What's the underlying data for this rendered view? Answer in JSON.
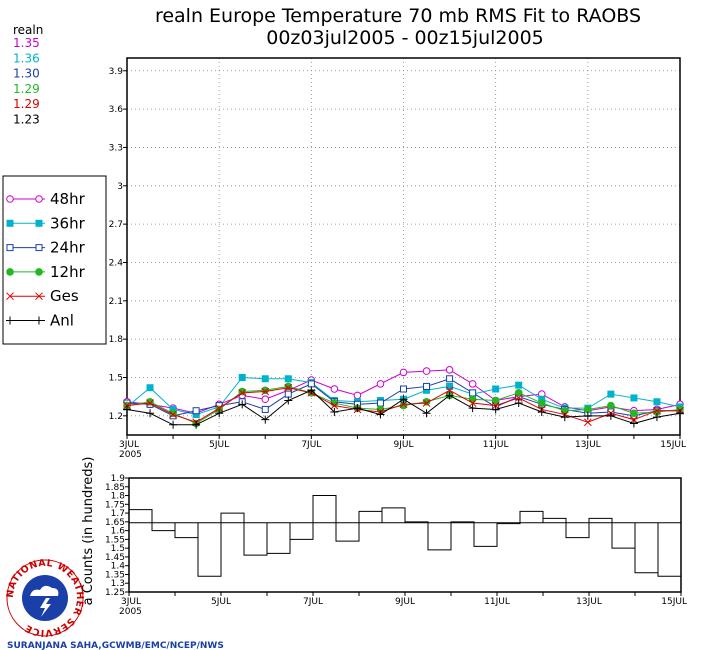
{
  "title": "realn Europe Temperature 70 mb RMS Fit to RAOBS",
  "subtitle": "00z03jul2005 - 00z15jul2005",
  "stats": {
    "header": "realn",
    "values": [
      {
        "value": "1.35",
        "color": "#cc00cc"
      },
      {
        "value": "1.36",
        "color": "#00b3cc"
      },
      {
        "value": "1.30",
        "color": "#1a3fa8"
      },
      {
        "value": "1.29",
        "color": "#22b822"
      },
      {
        "value": "1.29",
        "color": "#dd0000"
      },
      {
        "value": "1.23",
        "color": "#000000"
      }
    ]
  },
  "credit": "SURANJANA SAHA,GCWMB/EMC/NCEP/NWS",
  "logo_text": "NATIONAL WEATHER SERVICE",
  "chart_data": [
    {
      "type": "line",
      "x_tick_labels": [
        "3JUL",
        "5JUL",
        "7JUL",
        "9JUL",
        "11JUL",
        "13JUL",
        "15JUL"
      ],
      "x_year_label": "2005",
      "x_range": [
        3,
        15
      ],
      "ylim": [
        1.05,
        4.0
      ],
      "y_ticks": [
        "1.2",
        "1.5",
        "1.8",
        "2.1",
        "2.4",
        "2.7",
        "3",
        "3.3",
        "3.6",
        "3.9"
      ],
      "grid": true,
      "legend_position": "left",
      "x": [
        3.0,
        3.5,
        4.0,
        4.5,
        5.0,
        5.5,
        6.0,
        6.5,
        7.0,
        7.5,
        8.0,
        8.5,
        9.0,
        9.5,
        10.0,
        10.5,
        11.0,
        11.5,
        12.0,
        12.5,
        13.0,
        13.5,
        14.0,
        14.5,
        15.0
      ],
      "series": [
        {
          "name": "48hr",
          "color": "#cc00cc",
          "marker": "open-circle",
          "values": [
            1.31,
            1.29,
            1.26,
            1.22,
            1.29,
            1.36,
            1.33,
            1.4,
            1.48,
            1.41,
            1.36,
            1.45,
            1.54,
            1.55,
            1.56,
            1.45,
            1.32,
            1.35,
            1.37,
            1.27,
            1.24,
            1.27,
            1.24,
            1.25,
            1.29
          ]
        },
        {
          "name": "36hr",
          "color": "#00b3cc",
          "marker": "filled-square",
          "values": [
            1.27,
            1.42,
            1.25,
            1.21,
            1.27,
            1.5,
            1.49,
            1.49,
            1.46,
            1.32,
            1.31,
            1.32,
            1.33,
            1.4,
            1.43,
            1.37,
            1.41,
            1.44,
            1.33,
            1.26,
            1.26,
            1.37,
            1.34,
            1.31,
            1.27
          ]
        },
        {
          "name": "24hr",
          "color": "#1a3fa8",
          "marker": "open-square",
          "values": [
            1.3,
            1.29,
            1.2,
            1.24,
            1.28,
            1.31,
            1.25,
            1.37,
            1.45,
            1.31,
            1.29,
            1.3,
            1.41,
            1.43,
            1.49,
            1.38,
            1.27,
            1.35,
            1.29,
            1.25,
            1.22,
            1.23,
            1.2,
            1.24,
            1.24
          ]
        },
        {
          "name": "12hr",
          "color": "#22b822",
          "marker": "filled-circle",
          "values": [
            1.28,
            1.31,
            1.22,
            1.14,
            1.25,
            1.39,
            1.4,
            1.43,
            1.38,
            1.3,
            1.26,
            1.25,
            1.28,
            1.31,
            1.36,
            1.33,
            1.32,
            1.38,
            1.3,
            1.24,
            1.25,
            1.28,
            1.22,
            1.23,
            1.25
          ]
        },
        {
          "name": "Ges",
          "color": "#dd0000",
          "marker": "x",
          "values": [
            1.28,
            1.3,
            1.21,
            1.15,
            1.26,
            1.38,
            1.39,
            1.42,
            1.38,
            1.28,
            1.25,
            1.23,
            1.29,
            1.3,
            1.4,
            1.3,
            1.28,
            1.34,
            1.25,
            1.21,
            1.15,
            1.22,
            1.17,
            1.24,
            1.24
          ]
        },
        {
          "name": "Anl",
          "color": "#000000",
          "marker": "plus",
          "values": [
            1.25,
            1.22,
            1.13,
            1.13,
            1.22,
            1.29,
            1.17,
            1.32,
            1.4,
            1.23,
            1.26,
            1.21,
            1.33,
            1.22,
            1.36,
            1.26,
            1.25,
            1.3,
            1.23,
            1.19,
            1.2,
            1.2,
            1.14,
            1.19,
            1.22
          ]
        }
      ]
    },
    {
      "type": "bar",
      "style": "step",
      "ylabel": "a Counts (in hundreds)",
      "x_tick_labels": [
        "3JUL",
        "5JUL",
        "7JUL",
        "9JUL",
        "11JUL",
        "13JUL",
        "15JUL"
      ],
      "x_year_label": "2005",
      "x_range": [
        3,
        15
      ],
      "ylim": [
        1.25,
        1.9
      ],
      "y_ticks": [
        "1.25",
        "1.3",
        "1.35",
        "1.4",
        "1.45",
        "1.5",
        "1.55",
        "1.6",
        "1.65",
        "1.7",
        "1.75",
        "1.8",
        "1.85",
        "1.9"
      ],
      "reference_line": 1.645,
      "bar_width": 0.5,
      "x": [
        3.0,
        3.5,
        4.0,
        4.5,
        5.0,
        5.5,
        6.0,
        6.5,
        7.0,
        7.5,
        8.0,
        8.5,
        9.0,
        9.5,
        10.0,
        10.5,
        11.0,
        11.5,
        12.0,
        12.5,
        13.0,
        13.5,
        14.0,
        14.5,
        15.0
      ],
      "values": [
        1.72,
        1.6,
        1.56,
        1.34,
        1.7,
        1.46,
        1.47,
        1.55,
        1.8,
        1.54,
        1.71,
        1.73,
        1.65,
        1.49,
        1.65,
        1.51,
        1.64,
        1.71,
        1.67,
        1.56,
        1.67,
        1.5,
        1.36,
        1.34,
        1.66
      ]
    }
  ]
}
